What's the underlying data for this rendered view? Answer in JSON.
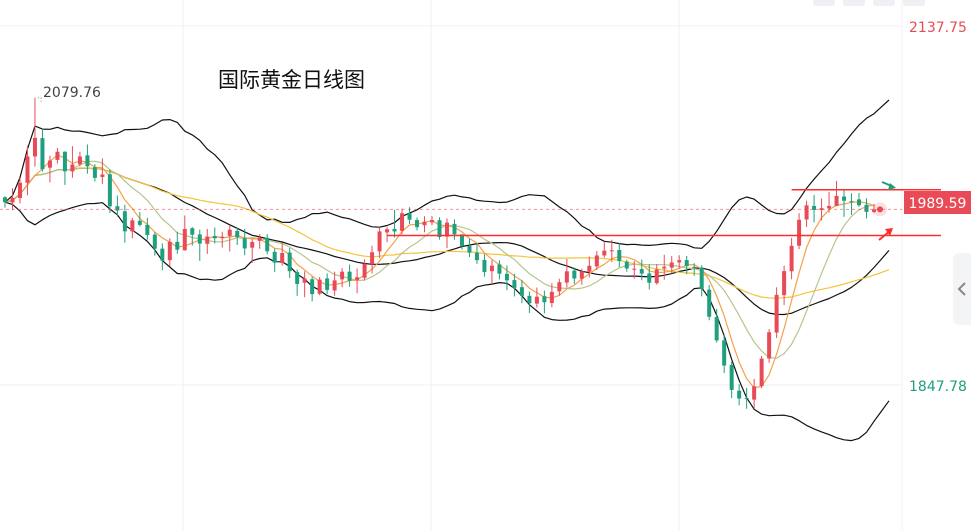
{
  "chart_data": {
    "type": "candlestick",
    "title": "国际黄金日线图",
    "y_axis_labels": {
      "top": "2137.75",
      "bottom": "1847.78"
    },
    "current_price": "1989.59",
    "high_annotation": "2079.76",
    "colors": {
      "up": "#e84b57",
      "down": "#1e9f7e",
      "ma_fast": "#f5a04a",
      "ma_mid": "#b7c58c",
      "ma_slow": "#f3c43c",
      "bands": "#111111",
      "level": "#ff2d2d",
      "grid": "#eef0f3"
    },
    "candles_ohlc": [
      [
        1999.4,
        2000.2,
        1991.0,
        1995.4
      ],
      [
        1995.2,
        2006.7,
        1989.0,
        1998.9
      ],
      [
        1998.8,
        2015.1,
        1994.4,
        2011.2
      ],
      [
        2011.1,
        2041.0,
        2000.9,
        2032.4
      ],
      [
        2032.4,
        2079.8,
        2024.1,
        2047.4
      ],
      [
        2047.2,
        2054.8,
        2020.2,
        2022.1
      ],
      [
        2023.3,
        2033.1,
        2011.5,
        2029.1
      ],
      [
        2029.6,
        2039.3,
        2026.6,
        2036.2
      ],
      [
        2036.2,
        2036.6,
        2009.4,
        2020.4
      ],
      [
        2020.3,
        2040.7,
        2015.2,
        2025.9
      ],
      [
        2026.0,
        2036.1,
        2024.4,
        2032.4
      ],
      [
        2033.3,
        2042.0,
        2018.5,
        2024.4
      ],
      [
        2023.7,
        2026.2,
        2012.2,
        2015.1
      ],
      [
        2015.8,
        2030.9,
        2010.2,
        2017.8
      ],
      [
        2018.0,
        2021.8,
        1986.7,
        1992.1
      ],
      [
        1992.2,
        2000.8,
        1983.8,
        1988.7
      ],
      [
        1988.1,
        1993.3,
        1962.7,
        1971.9
      ],
      [
        1971.8,
        1982.8,
        1966.3,
        1980.8
      ],
      [
        1980.4,
        1987.6,
        1975.9,
        1977.1
      ],
      [
        1977.1,
        1982.9,
        1965.1,
        1969.0
      ],
      [
        1969.2,
        1971.1,
        1952.3,
        1957.9
      ],
      [
        1957.9,
        1962.2,
        1940.5,
        1948.3
      ],
      [
        1948.6,
        1966.3,
        1943.5,
        1963.4
      ],
      [
        1963.4,
        1971.6,
        1953.8,
        1957.1
      ],
      [
        1956.6,
        1984.7,
        1956.3,
        1973.8
      ],
      [
        1974.4,
        1975.3,
        1960.4,
        1969.2
      ],
      [
        1969.4,
        1973.3,
        1948.0,
        1962.0
      ],
      [
        1961.8,
        1973.8,
        1953.7,
        1967.7
      ],
      [
        1968.1,
        1975.0,
        1962.1,
        1966.3
      ],
      [
        1966.5,
        1971.6,
        1958.8,
        1967.6
      ],
      [
        1968.2,
        1976.3,
        1955.6,
        1973.2
      ],
      [
        1972.2,
        1974.6,
        1960.9,
        1967.2
      ],
      [
        1966.3,
        1974.0,
        1952.7,
        1958.1
      ],
      [
        1958.7,
        1965.6,
        1946.3,
        1963.3
      ],
      [
        1964.2,
        1969.6,
        1957.8,
        1966.9
      ],
      [
        1966.7,
        1969.6,
        1953.3,
        1955.8
      ],
      [
        1955.3,
        1957.8,
        1939.2,
        1946.6
      ],
      [
        1946.4,
        1962.8,
        1944.3,
        1954.4
      ],
      [
        1954.8,
        1958.5,
        1934.3,
        1939.7
      ],
      [
        1939.0,
        1941.0,
        1919.8,
        1929.4
      ],
      [
        1930.4,
        1939.7,
        1918.7,
        1933.8
      ],
      [
        1933.2,
        1935.3,
        1915.3,
        1921.2
      ],
      [
        1921.5,
        1935.0,
        1920.3,
        1932.9
      ],
      [
        1933.8,
        1937.9,
        1921.3,
        1924.6
      ],
      [
        1924.1,
        1939.3,
        1919.8,
        1932.3
      ],
      [
        1933.1,
        1942.2,
        1926.8,
        1939.3
      ],
      [
        1939.3,
        1945.1,
        1927.2,
        1932.0
      ],
      [
        1932.5,
        1941.9,
        1921.9,
        1934.8
      ],
      [
        1934.4,
        1949.3,
        1932.1,
        1945.7
      ],
      [
        1945.4,
        1960.2,
        1937.8,
        1955.0
      ],
      [
        1955.7,
        1975.3,
        1950.4,
        1971.8
      ],
      [
        1971.0,
        1975.2,
        1963.1,
        1973.6
      ],
      [
        1973.8,
        1989.3,
        1966.9,
        1971.8
      ],
      [
        1972.3,
        1990.3,
        1969.6,
        1986.5
      ],
      [
        1986.6,
        1991.4,
        1977.8,
        1981.3
      ],
      [
        1981.0,
        1983.1,
        1972.6,
        1975.3
      ],
      [
        1976.8,
        1984.1,
        1971.1,
        1979.7
      ],
      [
        1979.2,
        1984.2,
        1976.9,
        1981.0
      ],
      [
        1980.9,
        1983.3,
        1965.2,
        1967.3
      ],
      [
        1967.6,
        1982.3,
        1958.3,
        1978.9
      ],
      [
        1977.9,
        1981.6,
        1965.2,
        1969.5
      ],
      [
        1969.4,
        1969.6,
        1957.1,
        1960.2
      ],
      [
        1960.0,
        1965.9,
        1951.2,
        1954.7
      ],
      [
        1954.6,
        1961.9,
        1945.6,
        1948.6
      ],
      [
        1948.8,
        1953.4,
        1935.3,
        1939.1
      ],
      [
        1939.7,
        1948.8,
        1929.1,
        1944.2
      ],
      [
        1945.2,
        1948.5,
        1933.0,
        1937.7
      ],
      [
        1937.6,
        1944.3,
        1924.3,
        1932.3
      ],
      [
        1932.5,
        1937.6,
        1919.3,
        1926.2
      ],
      [
        1926.8,
        1932.4,
        1913.9,
        1919.8
      ],
      [
        1919.8,
        1923.2,
        1906.0,
        1913.8
      ],
      [
        1913.5,
        1926.5,
        1910.3,
        1919.1
      ],
      [
        1919.5,
        1924.0,
        1905.6,
        1914.6
      ],
      [
        1914.0,
        1930.0,
        1910.6,
        1923.0
      ],
      [
        1923.4,
        1933.6,
        1920.0,
        1930.8
      ],
      [
        1930.5,
        1949.6,
        1926.4,
        1939.6
      ],
      [
        1940.2,
        1942.6,
        1929.4,
        1933.8
      ],
      [
        1933.7,
        1941.7,
        1928.7,
        1939.6
      ],
      [
        1939.3,
        1951.5,
        1934.7,
        1944.1
      ],
      [
        1943.6,
        1955.9,
        1940.7,
        1952.4
      ],
      [
        1952.4,
        1963.7,
        1950.6,
        1956.3
      ],
      [
        1955.9,
        1965.1,
        1947.1,
        1956.6
      ],
      [
        1956.8,
        1962.2,
        1943.0,
        1947.9
      ],
      [
        1947.4,
        1949.1,
        1939.2,
        1941.9
      ],
      [
        1941.3,
        1947.9,
        1933.8,
        1941.7
      ],
      [
        1941.4,
        1949.1,
        1932.4,
        1937.8
      ],
      [
        1937.9,
        1945.4,
        1925.0,
        1930.4
      ],
      [
        1930.1,
        1945.4,
        1928.8,
        1941.1
      ],
      [
        1941.9,
        1953.0,
        1932.8,
        1943.3
      ],
      [
        1942.6,
        1951.9,
        1937.8,
        1946.7
      ],
      [
        1946.8,
        1952.5,
        1941.8,
        1948.6
      ],
      [
        1948.7,
        1952.0,
        1937.2,
        1943.8
      ],
      [
        1943.2,
        1946.2,
        1935.9,
        1942.8
      ],
      [
        1942.6,
        1944.5,
        1919.4,
        1925.2
      ],
      [
        1924.8,
        1928.6,
        1900.1,
        1902.9
      ],
      [
        1902.7,
        1909.2,
        1882.0,
        1883.8
      ],
      [
        1883.9,
        1888.3,
        1857.5,
        1863.5
      ],
      [
        1864.0,
        1866.7,
        1837.2,
        1843.8
      ],
      [
        1843.2,
        1848.4,
        1831.4,
        1836.9
      ],
      [
        1837.2,
        1845.4,
        1828.6,
        1836.6
      ],
      [
        1836.0,
        1852.7,
        1829.4,
        1846.7
      ],
      [
        1847.0,
        1871.2,
        1845.3,
        1869.1
      ],
      [
        1869.2,
        1893.0,
        1865.7,
        1890.4
      ],
      [
        1890.1,
        1926.7,
        1885.7,
        1920.6
      ],
      [
        1920.4,
        1944.2,
        1912.4,
        1939.8
      ],
      [
        1939.6,
        1966.5,
        1933.2,
        1960.2
      ],
      [
        1960.3,
        1986.5,
        1957.5,
        1981.2
      ],
      [
        1981.5,
        1996.6,
        1975.4,
        1992.9
      ],
      [
        1992.4,
        2001.3,
        1979.1,
        1989.2
      ],
      [
        1989.1,
        1998.4,
        1980.7,
        1990.6
      ],
      [
        1990.4,
        2003.8,
        1987.1,
        1992.4
      ],
      [
        1992.5,
        2012.6,
        1992.2,
        2000.5
      ],
      [
        2000.0,
        2006.2,
        1983.6,
        1996.6
      ],
      [
        1996.3,
        2002.6,
        1985.2,
        1996.1
      ],
      [
        1997.7,
        2003.0,
        1991.7,
        1993.0
      ],
      [
        1993.3,
        1998.6,
        1982.3,
        1987.6
      ],
      [
        1987.6,
        1994.1,
        1986.5,
        1989.6
      ]
    ],
    "markers": {
      "level_high": 2005.5,
      "level_low": 1968.5,
      "low_level_start_index": 51
    }
  }
}
